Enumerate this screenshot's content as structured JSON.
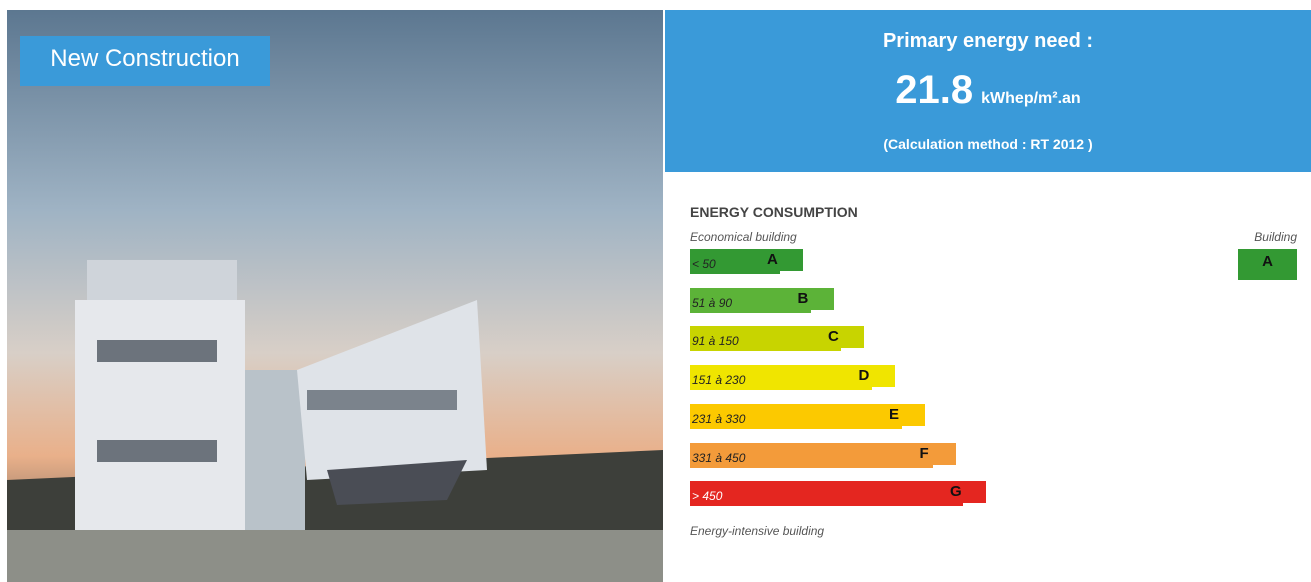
{
  "badge": "New Construction",
  "header": {
    "title": "Primary energy need :",
    "value": "21.8",
    "unit": "kWhep/m².an",
    "method": "(Calculation method : RT 2012 )"
  },
  "consumption": {
    "title": "ENERGY CONSUMPTION",
    "top_label": "Economical building",
    "building_label": "Building",
    "building_class": "A",
    "building_color": "#339933",
    "bottom_label": "Energy-intensive building",
    "classes": [
      {
        "range": "< 50",
        "letter": "A",
        "color": "#339933"
      },
      {
        "range": "51 à 90",
        "letter": "B",
        "color": "#5cb338"
      },
      {
        "range": "91 à 150",
        "letter": "C",
        "color": "#c8d400"
      },
      {
        "range": "151 à 230",
        "letter": "D",
        "color": "#f0e500"
      },
      {
        "range": "231 à 330",
        "letter": "E",
        "color": "#fcc900"
      },
      {
        "range": "331 à 450",
        "letter": "F",
        "color": "#f39b3a"
      },
      {
        "range": "> 450",
        "letter": "G",
        "color": "#e42620"
      }
    ]
  }
}
